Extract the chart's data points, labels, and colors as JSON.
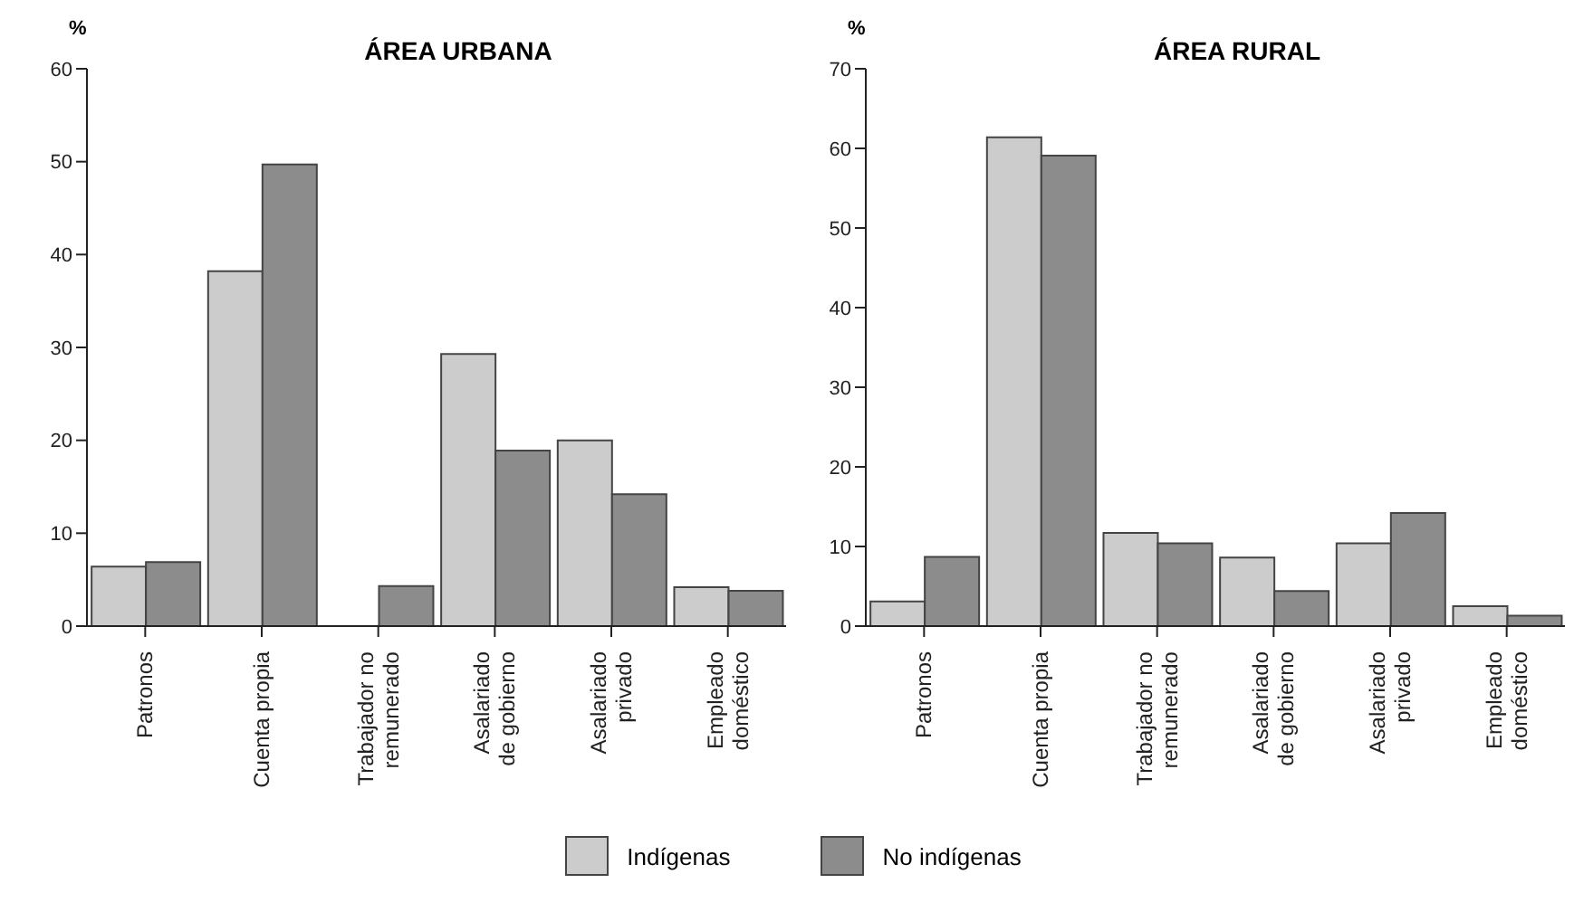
{
  "chart_data": [
    {
      "type": "bar",
      "title": "ÁREA URBANA",
      "ylabel": "%",
      "categories": [
        "Patronos",
        "Cuenta propia",
        "Trabajador no\nremunerado",
        "Asalariado\nde gobierno",
        "Asalariado\nprivado",
        "Empleado\ndoméstico"
      ],
      "series": [
        {
          "name": "Indígenas",
          "color": "#cccccc",
          "values": [
            6.4,
            38.2,
            0,
            29.3,
            20,
            4.2
          ]
        },
        {
          "name": "No indígenas",
          "color": "#8c8c8c",
          "values": [
            6.9,
            49.7,
            4.3,
            18.9,
            14.2,
            3.8
          ]
        }
      ],
      "ylim": [
        0,
        60
      ],
      "yticks": [
        0,
        10,
        20,
        30,
        40,
        50,
        60
      ],
      "grid": false,
      "legend": "bottom"
    },
    {
      "type": "bar",
      "title": "ÁREA RURAL",
      "ylabel": "%",
      "categories": [
        "Patronos",
        "Cuenta propia",
        "Trabajador no\nremunerado",
        "Asalariado\nde gobierno",
        "Asalariado\nprivado",
        "Empleado\ndoméstico"
      ],
      "series": [
        {
          "name": "Indígenas",
          "color": "#cccccc",
          "values": [
            3.1,
            61.4,
            11.7,
            8.6,
            10.4,
            2.5
          ]
        },
        {
          "name": "No indígenas",
          "color": "#8c8c8c",
          "values": [
            8.7,
            59.1,
            10.4,
            4.4,
            14.2,
            1.3
          ]
        }
      ],
      "ylim": [
        0,
        70
      ],
      "yticks": [
        0,
        10,
        20,
        30,
        40,
        50,
        60,
        70
      ],
      "grid": false,
      "legend": "bottom"
    }
  ]
}
